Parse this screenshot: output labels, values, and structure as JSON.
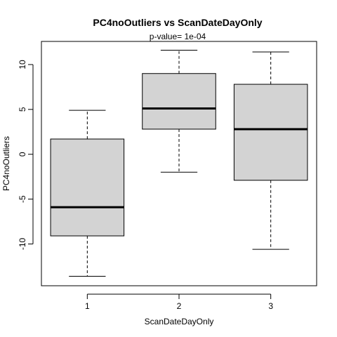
{
  "chart_data": {
    "type": "boxplot",
    "title": "PC4noOutliers  vs  ScanDateDayOnly",
    "subtitle": "p-value= 1e-04",
    "xlabel": "ScanDateDayOnly",
    "ylabel": "PC4noOutliers",
    "categories": [
      "1",
      "2",
      "3"
    ],
    "ylim": [
      -13.6,
      11.6
    ],
    "yticks": [
      -10,
      -5,
      0,
      5,
      10
    ],
    "box_fill": "#d3d3d3",
    "grid": false,
    "boxes": [
      {
        "category": "1",
        "whisker_low": -13.6,
        "q1": -9.1,
        "median": -5.9,
        "q3": 1.7,
        "whisker_high": 4.9
      },
      {
        "category": "2",
        "whisker_low": -2.0,
        "q1": 2.8,
        "median": 5.1,
        "q3": 9.0,
        "whisker_high": 11.6
      },
      {
        "category": "3",
        "whisker_low": -10.6,
        "q1": -2.9,
        "median": 2.8,
        "q3": 7.8,
        "whisker_high": 11.4
      }
    ]
  }
}
